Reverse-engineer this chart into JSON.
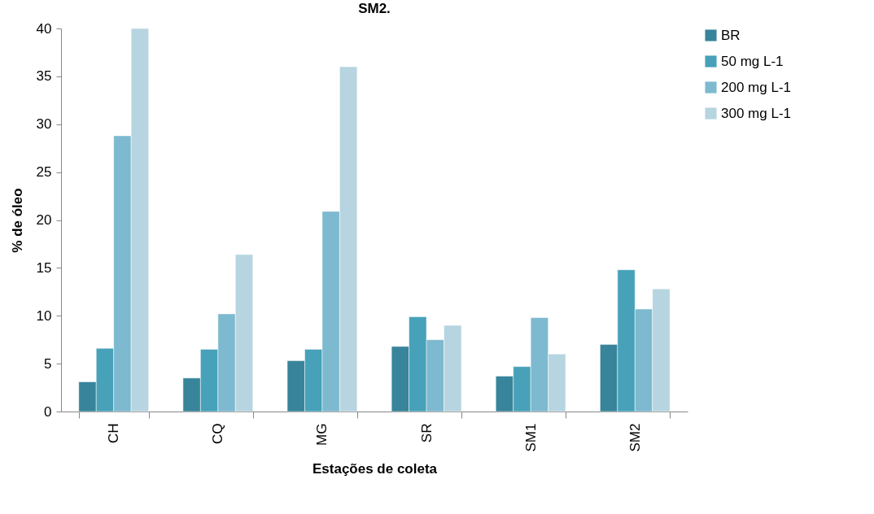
{
  "chart_data": {
    "type": "bar",
    "title": "SM2.",
    "xlabel": "Estações de coleta",
    "ylabel": "% de óleo",
    "categories": [
      "CH",
      "CQ",
      "MG",
      "SR",
      "SM1",
      "SM2"
    ],
    "series": [
      {
        "name": "BR",
        "color": "#38849a",
        "values": [
          3.1,
          3.5,
          5.3,
          6.8,
          3.7,
          7.0
        ]
      },
      {
        "name": "50 mg L-1",
        "color": "#47a1b9",
        "values": [
          6.6,
          6.5,
          6.5,
          9.9,
          4.7,
          14.8
        ]
      },
      {
        "name": "200 mg L-1",
        "color": "#7db9cf",
        "values": [
          28.8,
          10.2,
          20.9,
          7.5,
          9.8,
          10.7
        ]
      },
      {
        "name": "300 mg L-1",
        "color": "#b7d5e0",
        "values": [
          40.0,
          16.4,
          36.0,
          9.0,
          6.0,
          12.8
        ]
      }
    ],
    "ylim": [
      0,
      40
    ],
    "yticks": [
      0,
      5,
      10,
      15,
      20,
      25,
      30,
      35,
      40
    ],
    "grid": false,
    "legend": "right"
  }
}
